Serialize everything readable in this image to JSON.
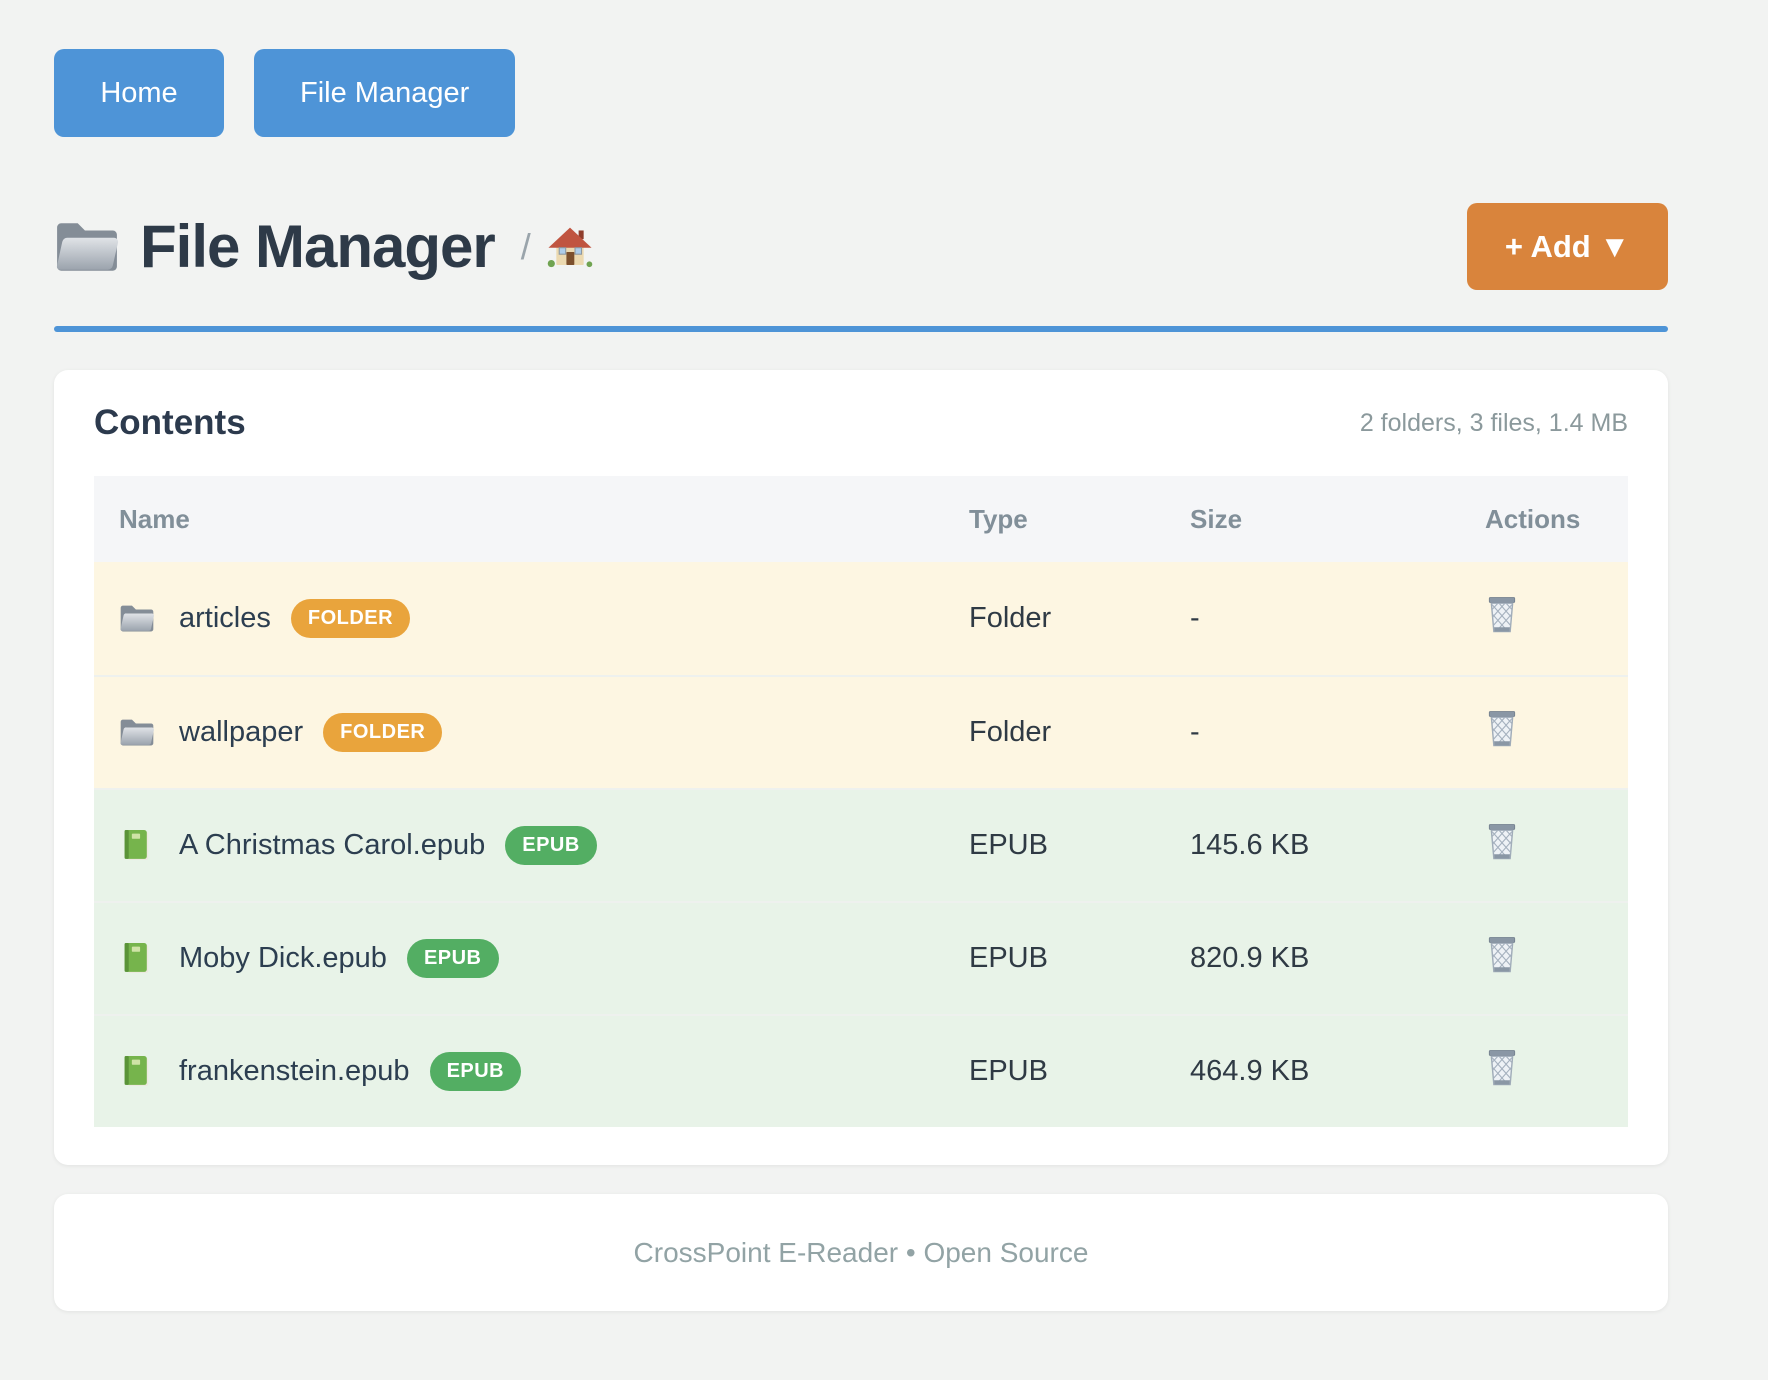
{
  "nav": {
    "home_label": "Home",
    "file_manager_label": "File Manager"
  },
  "header": {
    "title": "File Manager",
    "title_icon": "folder-icon",
    "breadcrumb_separator": "/",
    "breadcrumb_home_icon": "house-icon",
    "add_button_label": "+ Add ▼"
  },
  "contents": {
    "heading": "Contents",
    "summary": "2 folders, 3 files, 1.4 MB",
    "columns": [
      "Name",
      "Type",
      "Size",
      "Actions"
    ],
    "rows": [
      {
        "name": "articles",
        "badge": "FOLDER",
        "type": "Folder",
        "size": "-",
        "kind": "folder",
        "icon": "folder-icon"
      },
      {
        "name": "wallpaper",
        "badge": "FOLDER",
        "type": "Folder",
        "size": "-",
        "kind": "folder",
        "icon": "folder-icon"
      },
      {
        "name": "A Christmas Carol.epub",
        "badge": "EPUB",
        "type": "EPUB",
        "size": "145.6 KB",
        "kind": "epub",
        "icon": "green-book-icon"
      },
      {
        "name": "Moby Dick.epub",
        "badge": "EPUB",
        "type": "EPUB",
        "size": "820.9 KB",
        "kind": "epub",
        "icon": "green-book-icon"
      },
      {
        "name": "frankenstein.epub",
        "badge": "EPUB",
        "type": "EPUB",
        "size": "464.9 KB",
        "kind": "epub",
        "icon": "green-book-icon"
      }
    ],
    "action_icon": "trash-icon"
  },
  "footer": {
    "text": "CrossPoint E-Reader • Open Source"
  },
  "colors": {
    "page_bg": "#f2f3f2",
    "primary_blue": "#4e94d7",
    "accent_orange": "#d9843c",
    "badge_orange": "#e9a43c",
    "badge_green": "#53ae63",
    "folder_row_bg": "#fdf6e2",
    "epub_row_bg": "#e8f3e8"
  }
}
